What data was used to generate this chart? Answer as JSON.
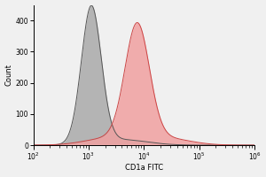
{
  "title": "",
  "xlabel": "CD1a FITC",
  "ylabel": "Count",
  "xlim": [
    100,
    1000000
  ],
  "ylim": [
    0,
    450
  ],
  "yticks": [
    0,
    100,
    200,
    300,
    400
  ],
  "background_color": "#f0f0f0",
  "gray_peak_log": 3.05,
  "gray_peak_height": 440,
  "gray_sigma_log": 0.18,
  "pink_peak_log": 3.88,
  "pink_peak_height": 370,
  "pink_sigma_log": 0.22,
  "gray_fill_color": "#aaaaaa",
  "gray_edge_color": "#555555",
  "pink_fill_color": "#f0a0a0",
  "pink_edge_color": "#cc4444",
  "fill_alpha": 0.85,
  "fig_width": 3.0,
  "fig_height": 2.0,
  "dpi": 100,
  "xlabel_fontsize": 6,
  "ylabel_fontsize": 6,
  "tick_fontsize": 5.5
}
